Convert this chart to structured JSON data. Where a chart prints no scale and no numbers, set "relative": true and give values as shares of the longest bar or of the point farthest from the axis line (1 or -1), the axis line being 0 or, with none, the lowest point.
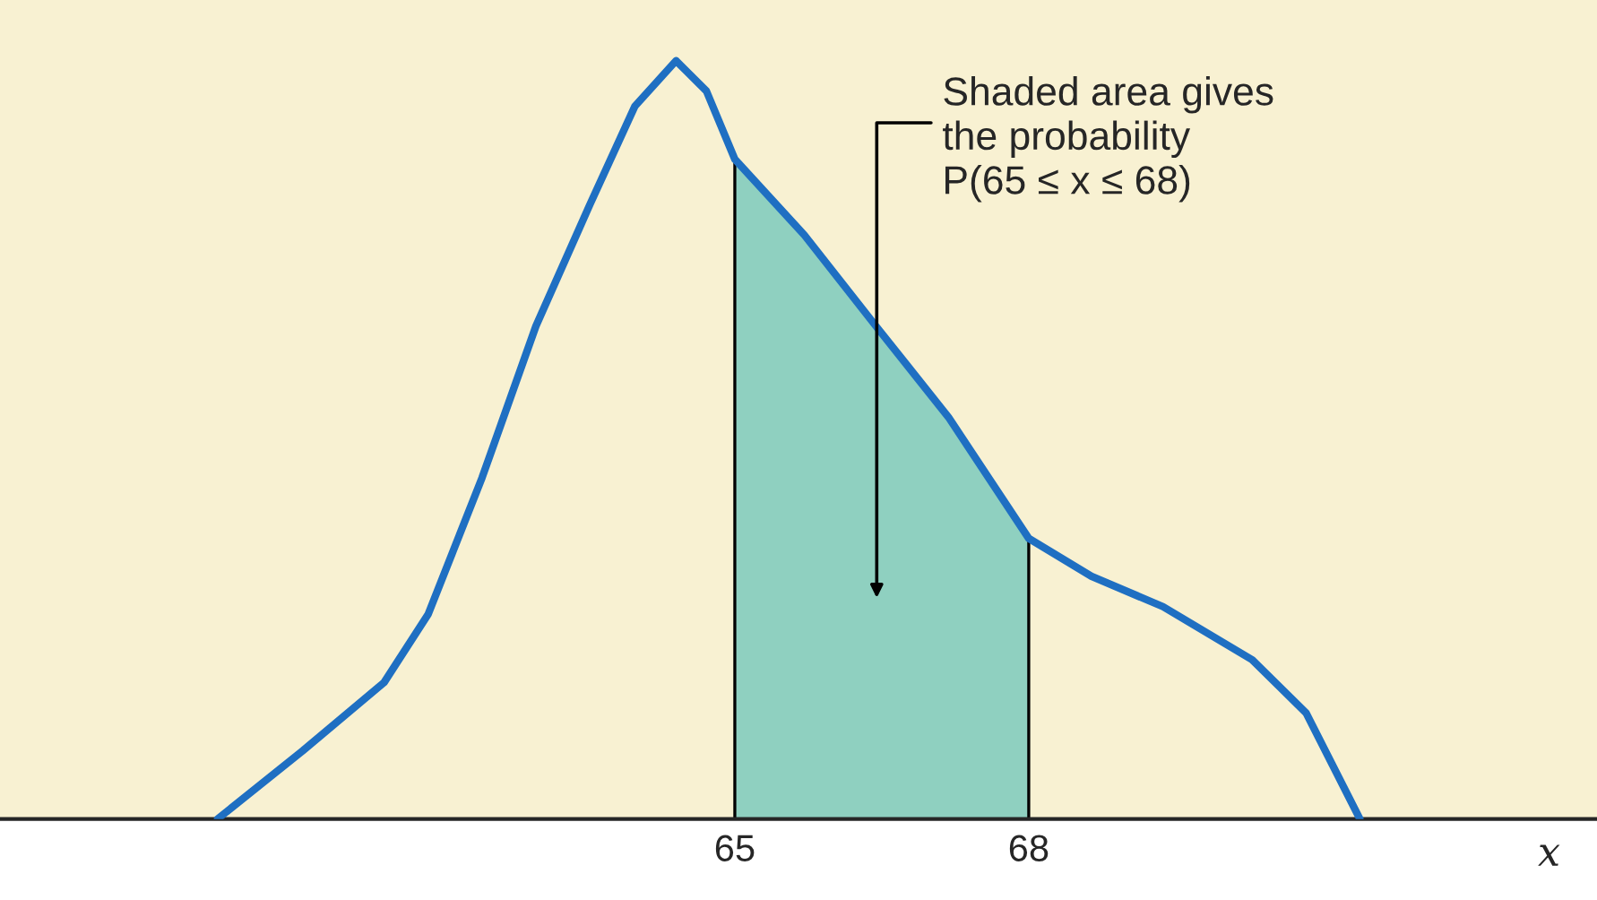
{
  "chart_data": {
    "type": "line",
    "relative": true,
    "xlabel": "x",
    "tick_labels": "x",
    "xlim": [
      57.5,
      73.8
    ],
    "xticks": [
      65,
      68
    ],
    "grid": false,
    "legend": false,
    "marker": "none",
    "line_style": "solid",
    "series": [
      {
        "type": "area",
        "color": "#8fd0c0",
        "x": [
          65,
          65.71,
          66.44,
          67.18,
          68
        ],
        "values": [
          0.87,
          0.77,
          0.65,
          0.53,
          0.37
        ]
      },
      {
        "color": "#1f6fc2",
        "x": [
          59.72,
          60.59,
          61.42,
          61.87,
          62.42,
          62.97,
          63.52,
          63.98,
          64.4,
          64.71,
          65,
          65.71,
          66.44,
          67.18,
          68,
          68.64,
          69.37,
          70.28,
          70.83,
          71.38
        ],
        "values": [
          0,
          0.09,
          0.18,
          0.27,
          0.45,
          0.65,
          0.81,
          0.94,
          1.0,
          0.96,
          0.87,
          0.77,
          0.65,
          0.53,
          0.37,
          0.32,
          0.28,
          0.21,
          0.14,
          0
        ]
      }
    ],
    "ref_lines": [
      {
        "axis": "x",
        "value": 65,
        "color": "#000000"
      },
      {
        "axis": "x",
        "value": 68,
        "color": "#000000"
      }
    ],
    "annotations": [
      "Shaded area gives\nthe probability\nP(65 ≤ x ≤ 68)"
    ]
  }
}
